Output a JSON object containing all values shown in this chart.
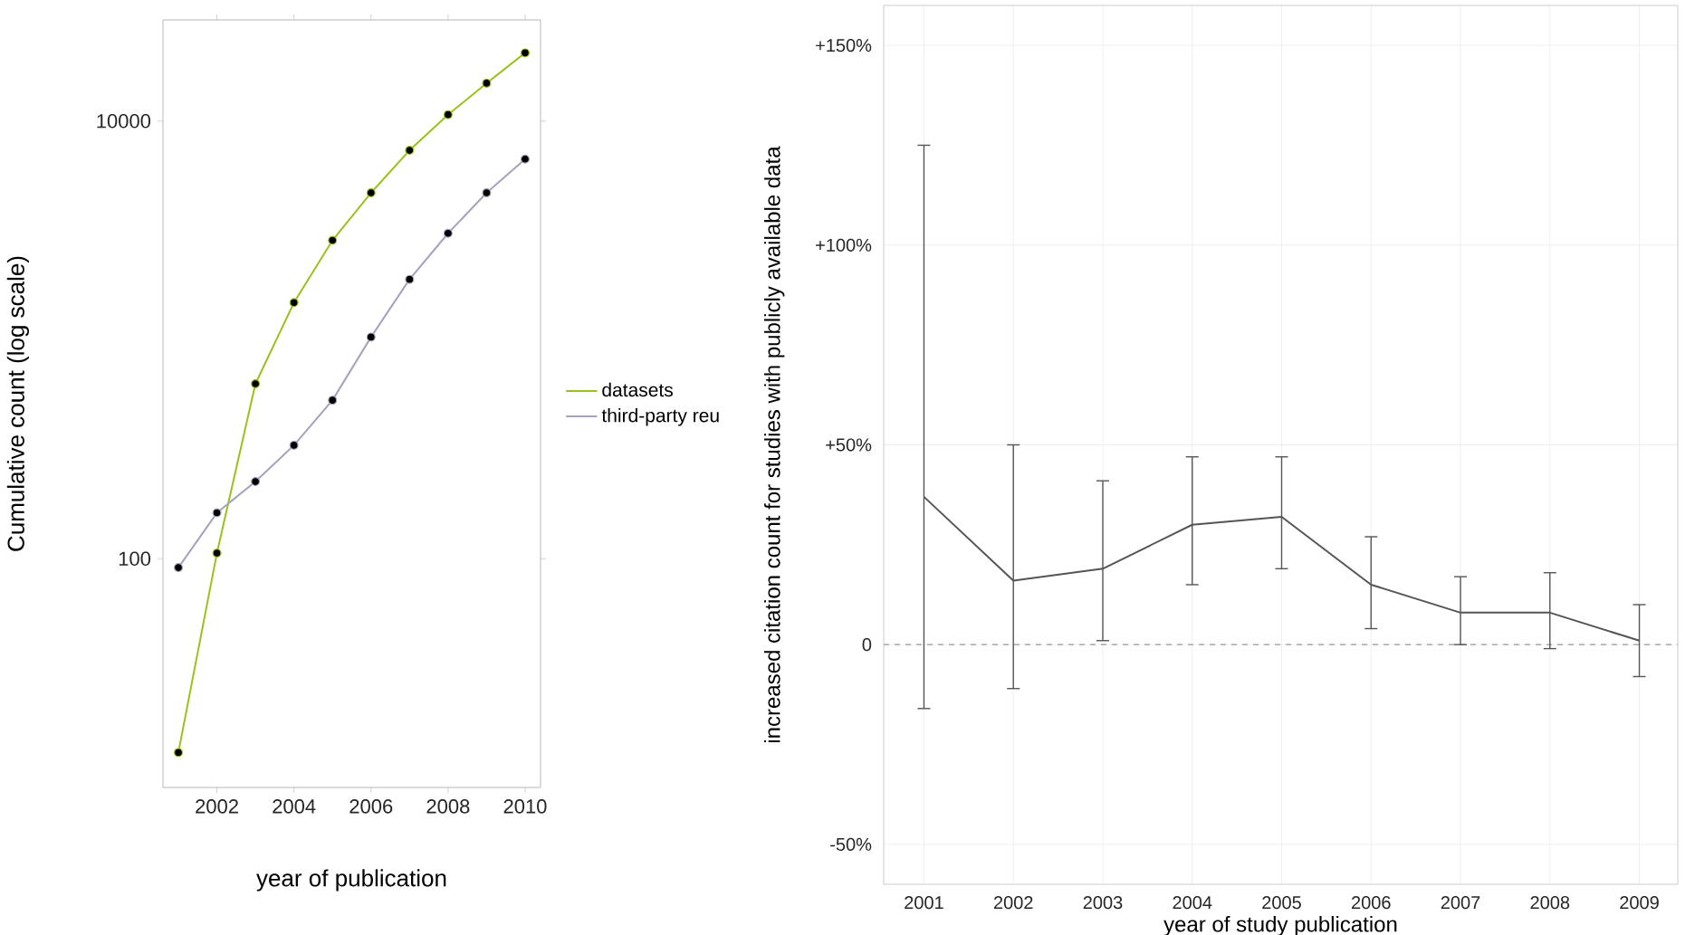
{
  "chart_data": [
    {
      "type": "line",
      "xlabel": "year of publication",
      "ylabel": "Cumulative count (log scale)",
      "x": [
        2001,
        2002,
        2003,
        2004,
        2005,
        2006,
        2007,
        2008,
        2009,
        2010
      ],
      "series": [
        {
          "name": "datasets",
          "color": "#99c21a",
          "values": [
            13,
            106,
            630,
            1480,
            2850,
            4700,
            7350,
            10700,
            14900,
            20500
          ]
        },
        {
          "name": "third-party reu",
          "color": "#a3a3bd",
          "values": [
            91,
            162,
            225,
            330,
            530,
            1030,
            1890,
            3070,
            4700,
            6700
          ]
        }
      ],
      "xlim": [
        2000.6,
        2010.4
      ],
      "ylim": [
        9,
        29000
      ],
      "xticks": [
        2002,
        2004,
        2006,
        2008,
        2010
      ],
      "yticks": [
        100,
        10000
      ],
      "log": true,
      "legend": "right",
      "marker": "circle"
    },
    {
      "type": "line",
      "xlabel": "year of study publication",
      "ylabel": "increased citation count for studies with publicly available data",
      "categories": [
        "2001",
        "2002",
        "2003",
        "2004",
        "2005",
        "2006",
        "2007",
        "2008",
        "2009"
      ],
      "series": [
        {
          "color": "#555555",
          "values": [
            37,
            16,
            19,
            30,
            32,
            15,
            8,
            8,
            1
          ],
          "errors": [
            [
              -16,
              125
            ],
            [
              -11,
              50
            ],
            [
              1,
              41
            ],
            [
              15,
              47
            ],
            [
              19,
              47
            ],
            [
              4,
              27
            ],
            [
              0,
              17
            ],
            [
              -1,
              18
            ],
            [
              -8,
              10
            ]
          ]
        }
      ],
      "ylim": [
        -60,
        160
      ],
      "yticks": [
        {
          "value": -50,
          "label": "-50%"
        },
        0,
        {
          "value": 50,
          "label": "+50%"
        },
        {
          "value": 100,
          "label": "+100%"
        },
        {
          "value": 150,
          "label": "+150%"
        }
      ],
      "grid": true,
      "ref_lines": [
        {
          "axis": "y",
          "value": 0,
          "color": "#999999",
          "line_style": "dashed"
        }
      ]
    }
  ]
}
